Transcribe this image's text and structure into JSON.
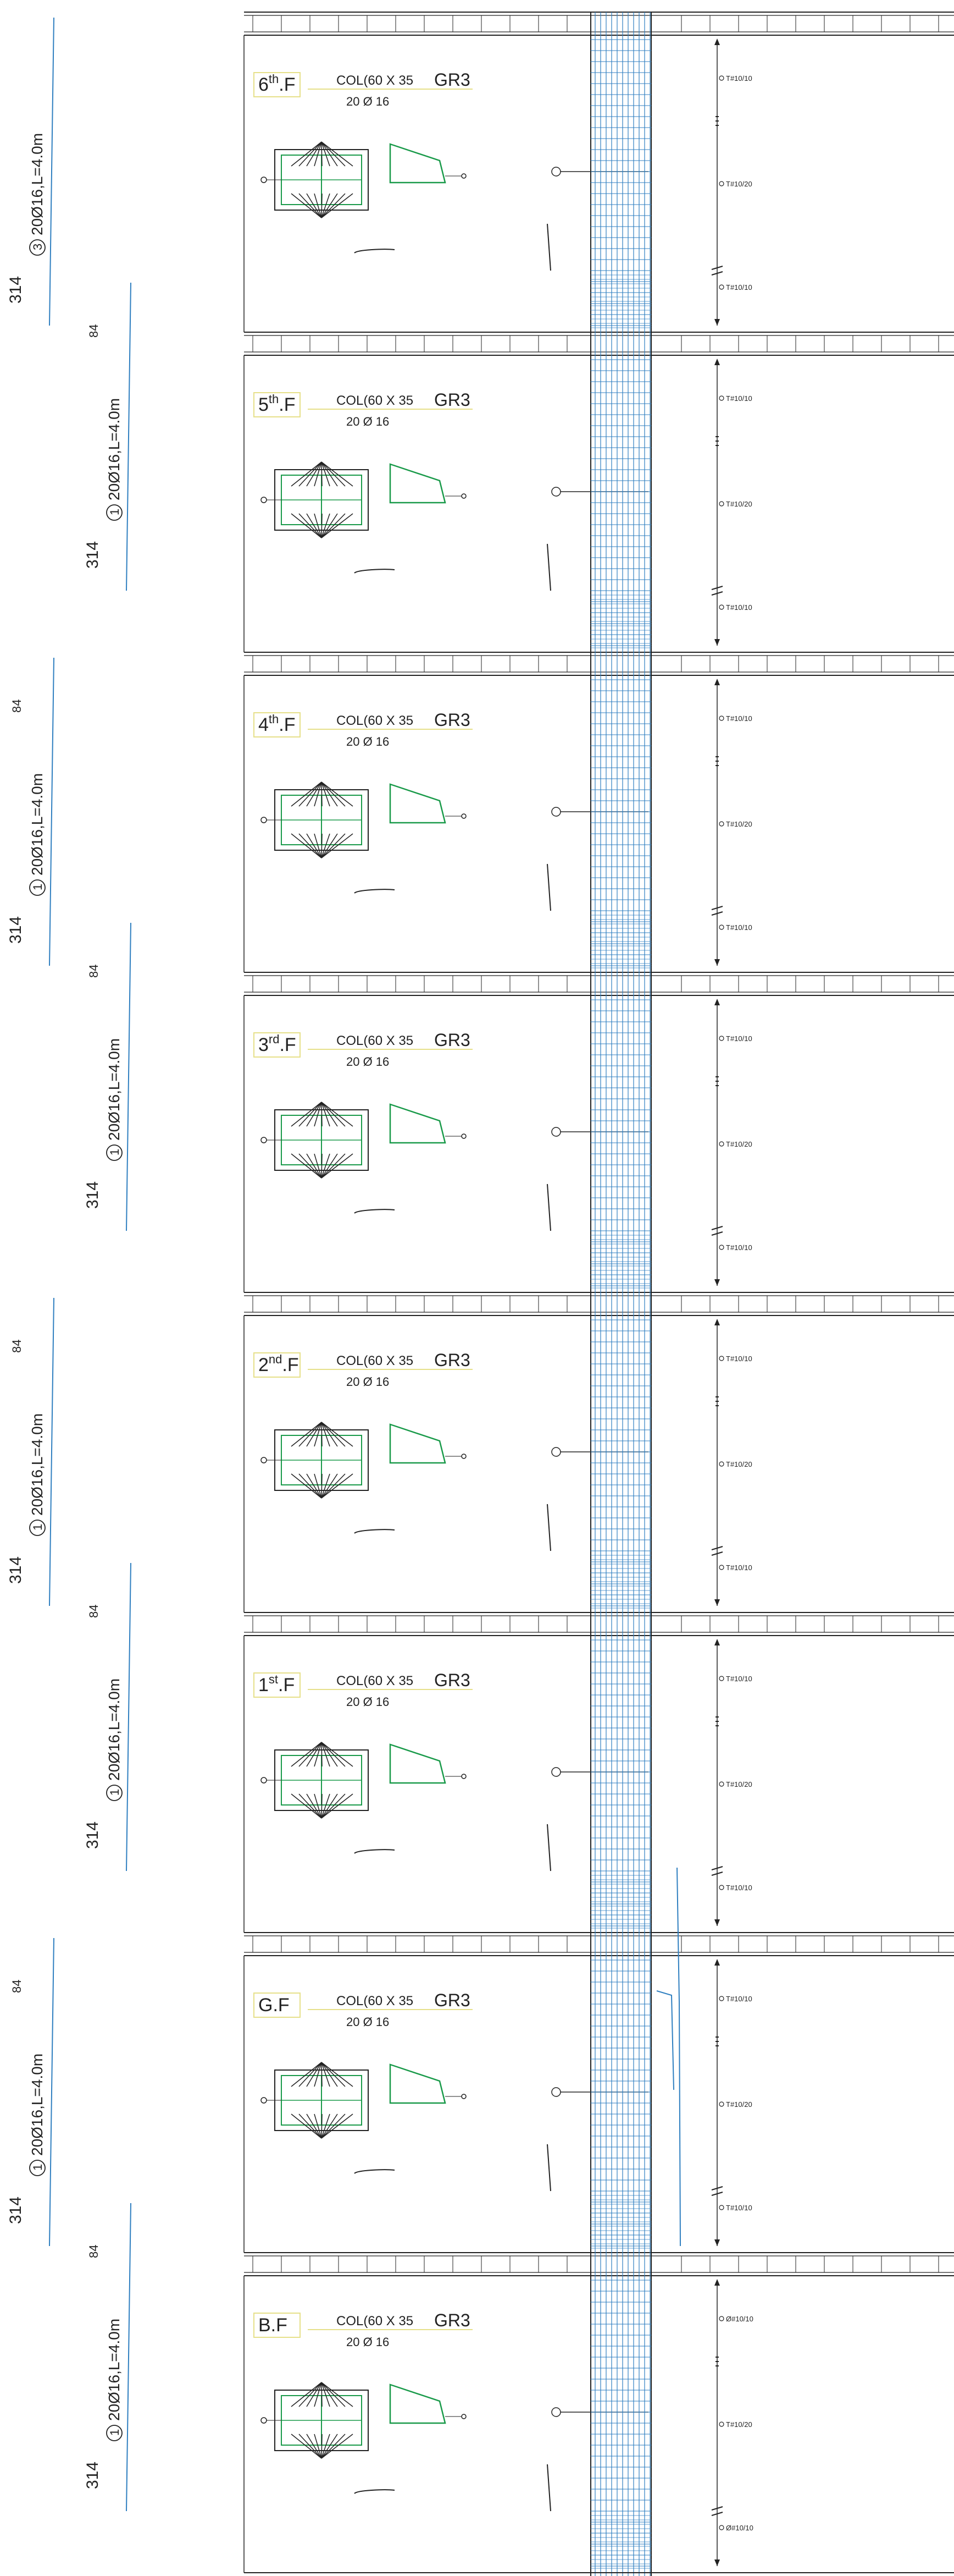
{
  "column": {
    "section_label": "COL(60 X 35",
    "group_label": "GR3",
    "bars_label": "20 Ø 16"
  },
  "floors": [
    {
      "prefix": "6",
      "suffix": "th",
      "end": ".F"
    },
    {
      "prefix": "5",
      "suffix": "th",
      "end": ".F"
    },
    {
      "prefix": "4",
      "suffix": "th",
      "end": ".F"
    },
    {
      "prefix": "3",
      "suffix": "rd",
      "end": ".F"
    },
    {
      "prefix": "2",
      "suffix": "nd",
      "end": ".F"
    },
    {
      "prefix": "1",
      "suffix": "st",
      "end": ".F"
    },
    {
      "prefix": "G.F",
      "suffix": "",
      "end": ""
    },
    {
      "prefix": "B.F",
      "suffix": "",
      "end": ""
    }
  ],
  "stirrup_labels": {
    "top": "T#10/10",
    "middle": "T#10/20",
    "bottom": "T#10/10",
    "basement_top": "Ø#10/10",
    "basement_bottom": "Ø#10/10"
  },
  "bar_marks": [
    {
      "mark": "3",
      "desc": "20Ø16,L=4.0m",
      "length": "314",
      "lap": ""
    },
    {
      "mark": "1",
      "desc": "20Ø16,L=4.0m",
      "length": "314",
      "lap": "84"
    },
    {
      "mark": "1",
      "desc": "20Ø16,L=4.0m",
      "length": "314",
      "lap": "84"
    },
    {
      "mark": "1",
      "desc": "20Ø16,L=4.0m",
      "length": "314",
      "lap": "84"
    },
    {
      "mark": "1",
      "desc": "20Ø16,L=4.0m",
      "length": "314",
      "lap": "84"
    },
    {
      "mark": "1",
      "desc": "20Ø16,L=4.0m",
      "length": "314",
      "lap": "84"
    },
    {
      "mark": "1",
      "desc": "20Ø16,L=4.0m",
      "length": "314",
      "lap": "84"
    },
    {
      "mark": "1",
      "desc": "20Ø16,L=4.0m",
      "length": "314",
      "lap": "84"
    }
  ],
  "colors": {
    "line": "#222222",
    "rebar_blue": "#2f7fc0",
    "stirrup_green": "#1a9a4a",
    "label_box": "#e6e08a"
  }
}
